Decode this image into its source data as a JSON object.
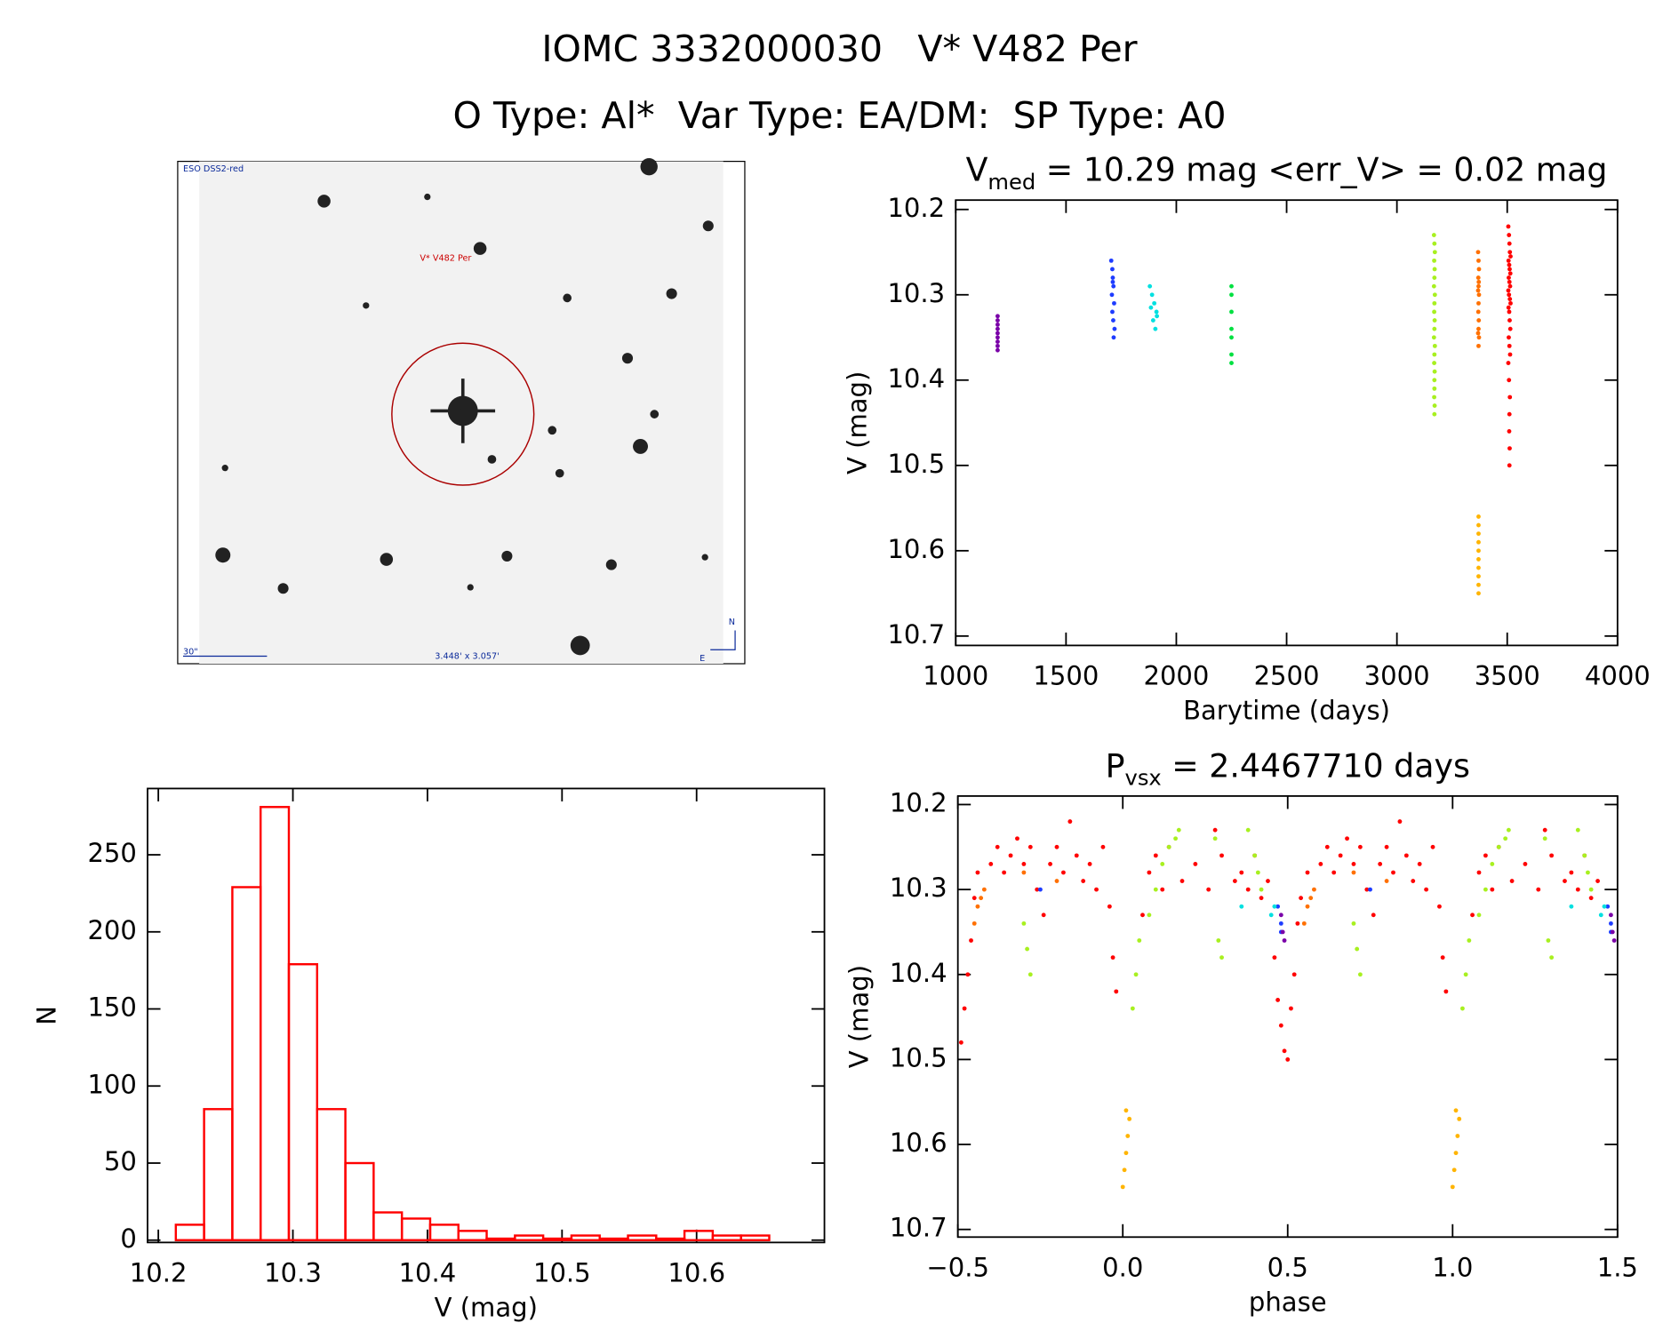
{
  "title": "IOMC 3332000030   V* V482 Per",
  "subtitle": "O Type: Al*  Var Type: EA/DM:  SP Type: A0",
  "chart_data": [
    {
      "type": "image",
      "survey": "ESO DSS2-red",
      "target": "V* V482 Per",
      "scale": "30\"",
      "field": "3.448' x 3.057'",
      "north": "N",
      "east": "E"
    },
    {
      "type": "scatter",
      "title": {
        "main": "V",
        "sub": "med",
        "rest": " = 10.29 mag <err_V> = 0.02 mag"
      },
      "x_label": "Barytime (days)",
      "y_label": "V (mag)",
      "xlim": [
        1000,
        4000
      ],
      "xticks": [
        1000,
        1500,
        2000,
        2500,
        3000,
        3500,
        4000
      ],
      "ylim": [
        10.189,
        10.711
      ],
      "yticks": [
        10.2,
        10.3,
        10.4,
        10.5,
        10.6,
        10.7
      ],
      "y_inverted": true,
      "series": [
        {
          "color": "#7a00a8",
          "x": [
            1190,
            1190,
            1190,
            1190,
            1190,
            1190,
            1190,
            1190,
            1190
          ],
          "y": [
            10.33,
            10.335,
            10.34,
            10.345,
            10.35,
            10.355,
            10.36,
            10.365,
            10.325
          ]
        },
        {
          "color": "#1e3cff",
          "x": [
            1705,
            1710,
            1712,
            1715,
            1708,
            1718,
            1710,
            1714,
            1720,
            1716,
            1712
          ],
          "y": [
            10.26,
            10.27,
            10.28,
            10.29,
            10.3,
            10.31,
            10.32,
            10.33,
            10.34,
            10.35,
            10.285
          ]
        },
        {
          "color": "#00e0e0",
          "x": [
            1880,
            1890,
            1900,
            1910,
            1895,
            1905,
            1885,
            1912
          ],
          "y": [
            10.29,
            10.3,
            10.31,
            10.32,
            10.33,
            10.34,
            10.315,
            10.325
          ]
        },
        {
          "color": "#00e040",
          "x": [
            2250,
            2250,
            2250,
            2250,
            2250,
            2250,
            2250
          ],
          "y": [
            10.29,
            10.3,
            10.32,
            10.34,
            10.35,
            10.37,
            10.38
          ]
        },
        {
          "color": "#a8f020",
          "x": [
            3168,
            3170,
            3172,
            3169,
            3171,
            3170,
            3168,
            3172,
            3170,
            3169,
            3171,
            3170,
            3168,
            3172,
            3170,
            3169,
            3171,
            3170,
            3170,
            3169,
            3171,
            3170
          ],
          "y": [
            10.23,
            10.24,
            10.25,
            10.26,
            10.27,
            10.28,
            10.29,
            10.3,
            10.31,
            10.32,
            10.33,
            10.34,
            10.35,
            10.36,
            10.37,
            10.38,
            10.39,
            10.4,
            10.41,
            10.42,
            10.43,
            10.44
          ]
        },
        {
          "color": "#ff7000",
          "x": [
            3368,
            3370,
            3372,
            3369,
            3371,
            3370,
            3368,
            3372,
            3370,
            3369,
            3371,
            3370,
            3368,
            3372,
            3370
          ],
          "y": [
            10.25,
            10.26,
            10.27,
            10.28,
            10.285,
            10.29,
            10.295,
            10.3,
            10.31,
            10.32,
            10.33,
            10.34,
            10.345,
            10.35,
            10.36
          ]
        },
        {
          "color": "#ffb400",
          "x": [
            3370,
            3370,
            3370,
            3370,
            3370,
            3370,
            3370,
            3370,
            3370,
            3370
          ],
          "y": [
            10.56,
            10.57,
            10.58,
            10.59,
            10.6,
            10.61,
            10.62,
            10.63,
            10.64,
            10.65
          ]
        },
        {
          "color": "#ff0000",
          "x": [
            3505,
            3508,
            3510,
            3512,
            3515,
            3506,
            3509,
            3511,
            3514,
            3507,
            3510,
            3513,
            3505,
            3508,
            3512,
            3515,
            3506,
            3509,
            3511,
            3514,
            3507,
            3510,
            3513,
            3505,
            3508,
            3512,
            3510,
            3509,
            3511,
            3510
          ],
          "y": [
            10.22,
            10.23,
            10.24,
            10.25,
            10.255,
            10.26,
            10.265,
            10.27,
            10.275,
            10.28,
            10.285,
            10.29,
            10.295,
            10.3,
            10.305,
            10.31,
            10.315,
            10.32,
            10.33,
            10.34,
            10.35,
            10.36,
            10.37,
            10.38,
            10.4,
            10.42,
            10.44,
            10.46,
            10.48,
            10.5
          ]
        }
      ]
    },
    {
      "type": "histogram",
      "x_label": "V (mag)",
      "y_label": "N",
      "color": "#ff0000",
      "bins": [
        10.213,
        10.234,
        10.255,
        10.276,
        10.297,
        10.318,
        10.339,
        10.36,
        10.381,
        10.402,
        10.423,
        10.444,
        10.465,
        10.486,
        10.507,
        10.528,
        10.549,
        10.57,
        10.591,
        10.612,
        10.633,
        10.654,
        10.675
      ],
      "counts": [
        10,
        85,
        229,
        281,
        179,
        85,
        50,
        18,
        14,
        10,
        6,
        1,
        3,
        1,
        3,
        1,
        3,
        1,
        6,
        3,
        3,
        0
      ],
      "xlim": [
        10.192,
        10.695
      ],
      "xticks": [
        10.2,
        10.3,
        10.4,
        10.5,
        10.6
      ],
      "ylim": [
        -1.5,
        293
      ],
      "yticks": [
        0,
        50,
        100,
        150,
        200,
        250
      ]
    },
    {
      "type": "scatter",
      "title": {
        "main": "P",
        "sub": "vsx",
        "rest": " = 2.4467710 days"
      },
      "x_label": "phase",
      "y_label": "V (mag)",
      "xlim": [
        -0.5,
        1.5
      ],
      "xticks": [
        {
          "value": -0.5,
          "label": "−0.5"
        },
        {
          "value": 0,
          "label": "0.0"
        },
        0.5,
        {
          "value": 1,
          "label": "1.0"
        },
        1.5
      ],
      "ylim": [
        10.19,
        10.709
      ],
      "yticks": [
        10.2,
        10.3,
        10.4,
        10.5,
        10.6,
        10.7
      ],
      "y_inverted": true,
      "series": [
        {
          "color": "#ff0000",
          "x": [
            -0.49,
            -0.48,
            -0.47,
            -0.46,
            -0.45,
            -0.44,
            -0.4,
            -0.38,
            -0.36,
            -0.34,
            -0.32,
            -0.3,
            -0.28,
            -0.26,
            -0.24,
            -0.22,
            -0.2,
            -0.18,
            -0.16,
            -0.14,
            -0.12,
            -0.1,
            -0.08,
            -0.06,
            -0.04,
            -0.03,
            -0.02,
            0.06,
            0.08,
            0.1,
            0.12,
            0.14,
            0.18,
            0.22,
            0.26,
            0.28,
            0.3,
            0.34,
            0.36,
            0.38,
            0.4,
            0.42,
            0.44,
            0.46,
            0.47,
            0.48,
            0.49,
            0.5,
            0.51,
            0.52,
            0.53,
            0.54,
            0.56,
            0.6,
            0.62,
            0.64,
            0.66,
            0.68,
            0.7,
            0.72,
            0.74,
            0.76,
            0.78,
            0.8,
            0.82,
            0.84,
            0.86,
            0.88,
            0.9,
            0.92,
            0.94,
            0.96,
            0.97,
            0.98,
            1.06,
            1.08,
            1.1,
            1.12,
            1.14,
            1.18,
            1.22,
            1.26,
            1.28,
            1.3,
            1.34,
            1.36,
            1.38,
            1.4,
            1.42,
            1.44
          ],
          "y": [
            10.48,
            10.44,
            10.4,
            10.36,
            10.31,
            10.28,
            10.27,
            10.25,
            10.28,
            10.26,
            10.24,
            10.27,
            10.25,
            10.3,
            10.33,
            10.27,
            10.25,
            10.28,
            10.22,
            10.26,
            10.29,
            10.27,
            10.3,
            10.25,
            10.32,
            10.38,
            10.42,
            10.33,
            10.28,
            10.26,
            10.3,
            10.25,
            10.29,
            10.27,
            10.3,
            10.23,
            10.26,
            10.29,
            10.28,
            10.3,
            10.26,
            10.31,
            10.29,
            10.38,
            10.43,
            10.46,
            10.49,
            10.5,
            10.44,
            10.4,
            10.34,
            10.31,
            10.28,
            10.27,
            10.25,
            10.28,
            10.26,
            10.24,
            10.27,
            10.25,
            10.3,
            10.33,
            10.27,
            10.25,
            10.28,
            10.22,
            10.26,
            10.29,
            10.27,
            10.3,
            10.25,
            10.32,
            10.38,
            10.42,
            10.33,
            10.28,
            10.26,
            10.3,
            10.25,
            10.29,
            10.27,
            10.3,
            10.23,
            10.26,
            10.29,
            10.28,
            10.3,
            10.26,
            10.31,
            10.29
          ]
        },
        {
          "color": "#a8f020",
          "x": [
            -0.3,
            -0.29,
            -0.28,
            0.03,
            0.04,
            0.05,
            0.08,
            0.1,
            0.12,
            0.14,
            0.16,
            0.17,
            0.29,
            0.3,
            0.28,
            0.38,
            0.4,
            0.41,
            0.42,
            0.7,
            0.71,
            0.72,
            1.03,
            1.04,
            1.05,
            1.08,
            1.1,
            1.12,
            1.14,
            1.16,
            1.17,
            1.29,
            1.3,
            1.28,
            1.38,
            1.4,
            1.41,
            1.42
          ],
          "y": [
            10.34,
            10.37,
            10.4,
            10.44,
            10.4,
            10.36,
            10.33,
            10.3,
            10.27,
            10.25,
            10.24,
            10.23,
            10.36,
            10.38,
            10.24,
            10.23,
            10.26,
            10.28,
            10.3,
            10.34,
            10.37,
            10.4,
            10.44,
            10.4,
            10.36,
            10.33,
            10.3,
            10.27,
            10.25,
            10.24,
            10.23,
            10.36,
            10.38,
            10.24,
            10.23,
            10.26,
            10.28,
            10.3
          ]
        },
        {
          "color": "#ff7000",
          "x": [
            -0.45,
            -0.44,
            -0.43,
            -0.42,
            -0.3,
            -0.2,
            0.55,
            0.56,
            0.57,
            0.58,
            0.7,
            0.8
          ],
          "y": [
            10.34,
            10.32,
            10.31,
            10.3,
            10.28,
            10.29,
            10.34,
            10.32,
            10.31,
            10.3,
            10.28,
            10.29
          ]
        },
        {
          "color": "#ffb400",
          "x": [
            0.0,
            0.005,
            0.01,
            0.015,
            0.02,
            0.01,
            1.0,
            1.005,
            1.01,
            1.015,
            1.02,
            1.01
          ],
          "y": [
            10.65,
            10.63,
            10.61,
            10.59,
            10.57,
            10.56,
            10.65,
            10.63,
            10.61,
            10.59,
            10.57,
            10.56
          ]
        },
        {
          "color": "#1e3cff",
          "x": [
            -0.25,
            0.47,
            0.48,
            0.48,
            0.75,
            1.47,
            1.48,
            1.48
          ],
          "y": [
            10.3,
            10.32,
            10.34,
            10.35,
            10.3,
            10.32,
            10.34,
            10.35
          ]
        },
        {
          "color": "#00e0e0",
          "x": [
            0.36,
            0.45,
            0.46,
            1.36,
            1.45,
            1.46
          ],
          "y": [
            10.32,
            10.33,
            10.32,
            10.32,
            10.33,
            10.32
          ]
        },
        {
          "color": "#7a00a8",
          "x": [
            0.48,
            0.485,
            0.49,
            1.48,
            1.485,
            1.49
          ],
          "y": [
            10.33,
            10.35,
            10.36,
            10.33,
            10.35,
            10.36
          ]
        }
      ]
    }
  ]
}
